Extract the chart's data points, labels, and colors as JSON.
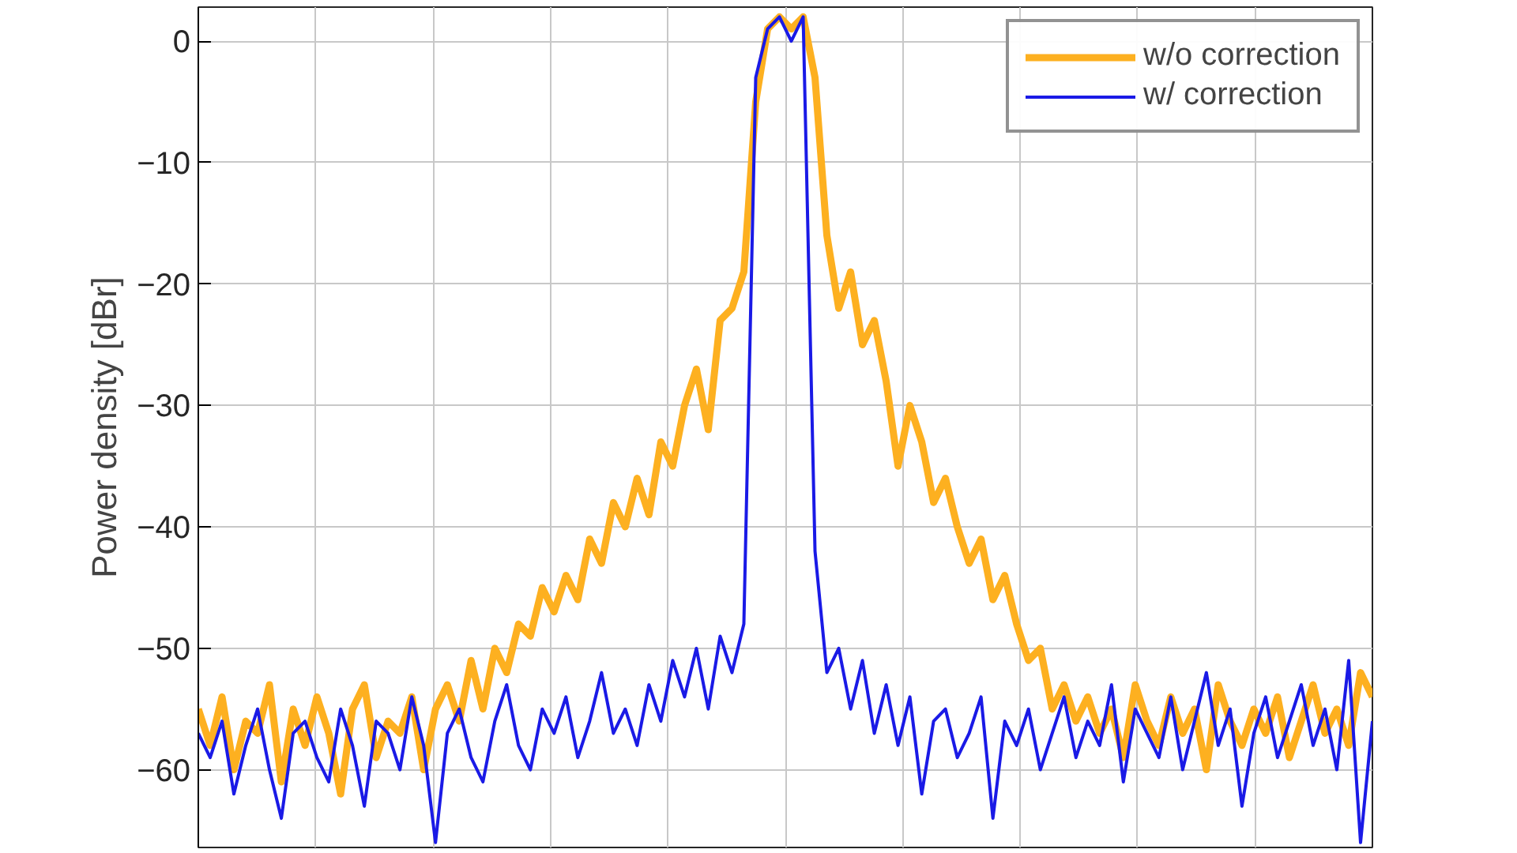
{
  "chart_data": {
    "type": "line",
    "ylabel": "Power density [dBr]",
    "categories": [
      null,
      null,
      null,
      null,
      null,
      null,
      null,
      null,
      null,
      null,
      null,
      null,
      null,
      null,
      null,
      null,
      null,
      null,
      null,
      null,
      null,
      null,
      null,
      null,
      null,
      null,
      null,
      null,
      null,
      null,
      null,
      null,
      null,
      null,
      null,
      null,
      null,
      null,
      null,
      null,
      null,
      null,
      null,
      null,
      null,
      null,
      null,
      null,
      null,
      null,
      null,
      null,
      null,
      null,
      null,
      null,
      null,
      null,
      null,
      null,
      null,
      null,
      null,
      null,
      null,
      null,
      null,
      null,
      null,
      null,
      null,
      null,
      null,
      null,
      null,
      null,
      null,
      null,
      null,
      null,
      null,
      null,
      null,
      null,
      null,
      null,
      null,
      null,
      null,
      null,
      null,
      null,
      null,
      null,
      null,
      null,
      null,
      null,
      null,
      null
    ],
    "series": [
      {
        "name": "w/o correction",
        "color": "#fdb020",
        "values": [
          -55,
          -58,
          -54,
          -60,
          -56,
          -57,
          -53,
          -61,
          -55,
          -58,
          -54,
          -57,
          -62,
          -55,
          -53,
          -59,
          -56,
          -57,
          -54,
          -60,
          -55,
          -53,
          -56,
          -51,
          -55,
          -50,
          -52,
          -48,
          -49,
          -45,
          -47,
          -44,
          -46,
          -41,
          -43,
          -38,
          -40,
          -36,
          -39,
          -33,
          -35,
          -30,
          -27,
          -32,
          -23,
          -22,
          -19,
          -5,
          1,
          2,
          1,
          2,
          -3,
          -16,
          -22,
          -19,
          -25,
          -23,
          -28,
          -35,
          -30,
          -33,
          -38,
          -36,
          -40,
          -43,
          -41,
          -46,
          -44,
          -48,
          -51,
          -50,
          -55,
          -53,
          -56,
          -54,
          -57,
          -55,
          -59,
          -53,
          -56,
          -58,
          -54,
          -57,
          -55,
          -60,
          -53,
          -56,
          -58,
          -55,
          -57,
          -54,
          -59,
          -56,
          -53,
          -57,
          -55,
          -58,
          -52,
          -54
        ]
      },
      {
        "name": "w/ correction",
        "color": "#1a1ae6",
        "values": [
          -57,
          -59,
          -56,
          -62,
          -58,
          -55,
          -60,
          -64,
          -57,
          -56,
          -59,
          -61,
          -55,
          -58,
          -63,
          -56,
          -57,
          -60,
          -54,
          -58,
          -66,
          -57,
          -55,
          -59,
          -61,
          -56,
          -53,
          -58,
          -60,
          -55,
          -57,
          -54,
          -59,
          -56,
          -52,
          -57,
          -55,
          -58,
          -53,
          -56,
          -51,
          -54,
          -50,
          -55,
          -49,
          -52,
          -48,
          -3,
          1,
          2,
          0,
          2,
          -42,
          -52,
          -50,
          -55,
          -51,
          -57,
          -53,
          -58,
          -54,
          -62,
          -56,
          -55,
          -59,
          -57,
          -54,
          -64,
          -56,
          -58,
          -55,
          -60,
          -57,
          -54,
          -59,
          -56,
          -58,
          -53,
          -61,
          -55,
          -57,
          -59,
          -54,
          -60,
          -56,
          -52,
          -58,
          -55,
          -63,
          -57,
          -54,
          -59,
          -56,
          -53,
          -58,
          -55,
          -60,
          -51,
          -66,
          -56
        ]
      }
    ],
    "ylim": [
      -66.4,
      2.8
    ],
    "yticks": [
      -60,
      -50,
      -40,
      -30,
      -20,
      -10,
      0
    ],
    "grid": true,
    "legend": "top right",
    "tick_labels": "y",
    "line_style": "solid",
    "marker": "none"
  }
}
